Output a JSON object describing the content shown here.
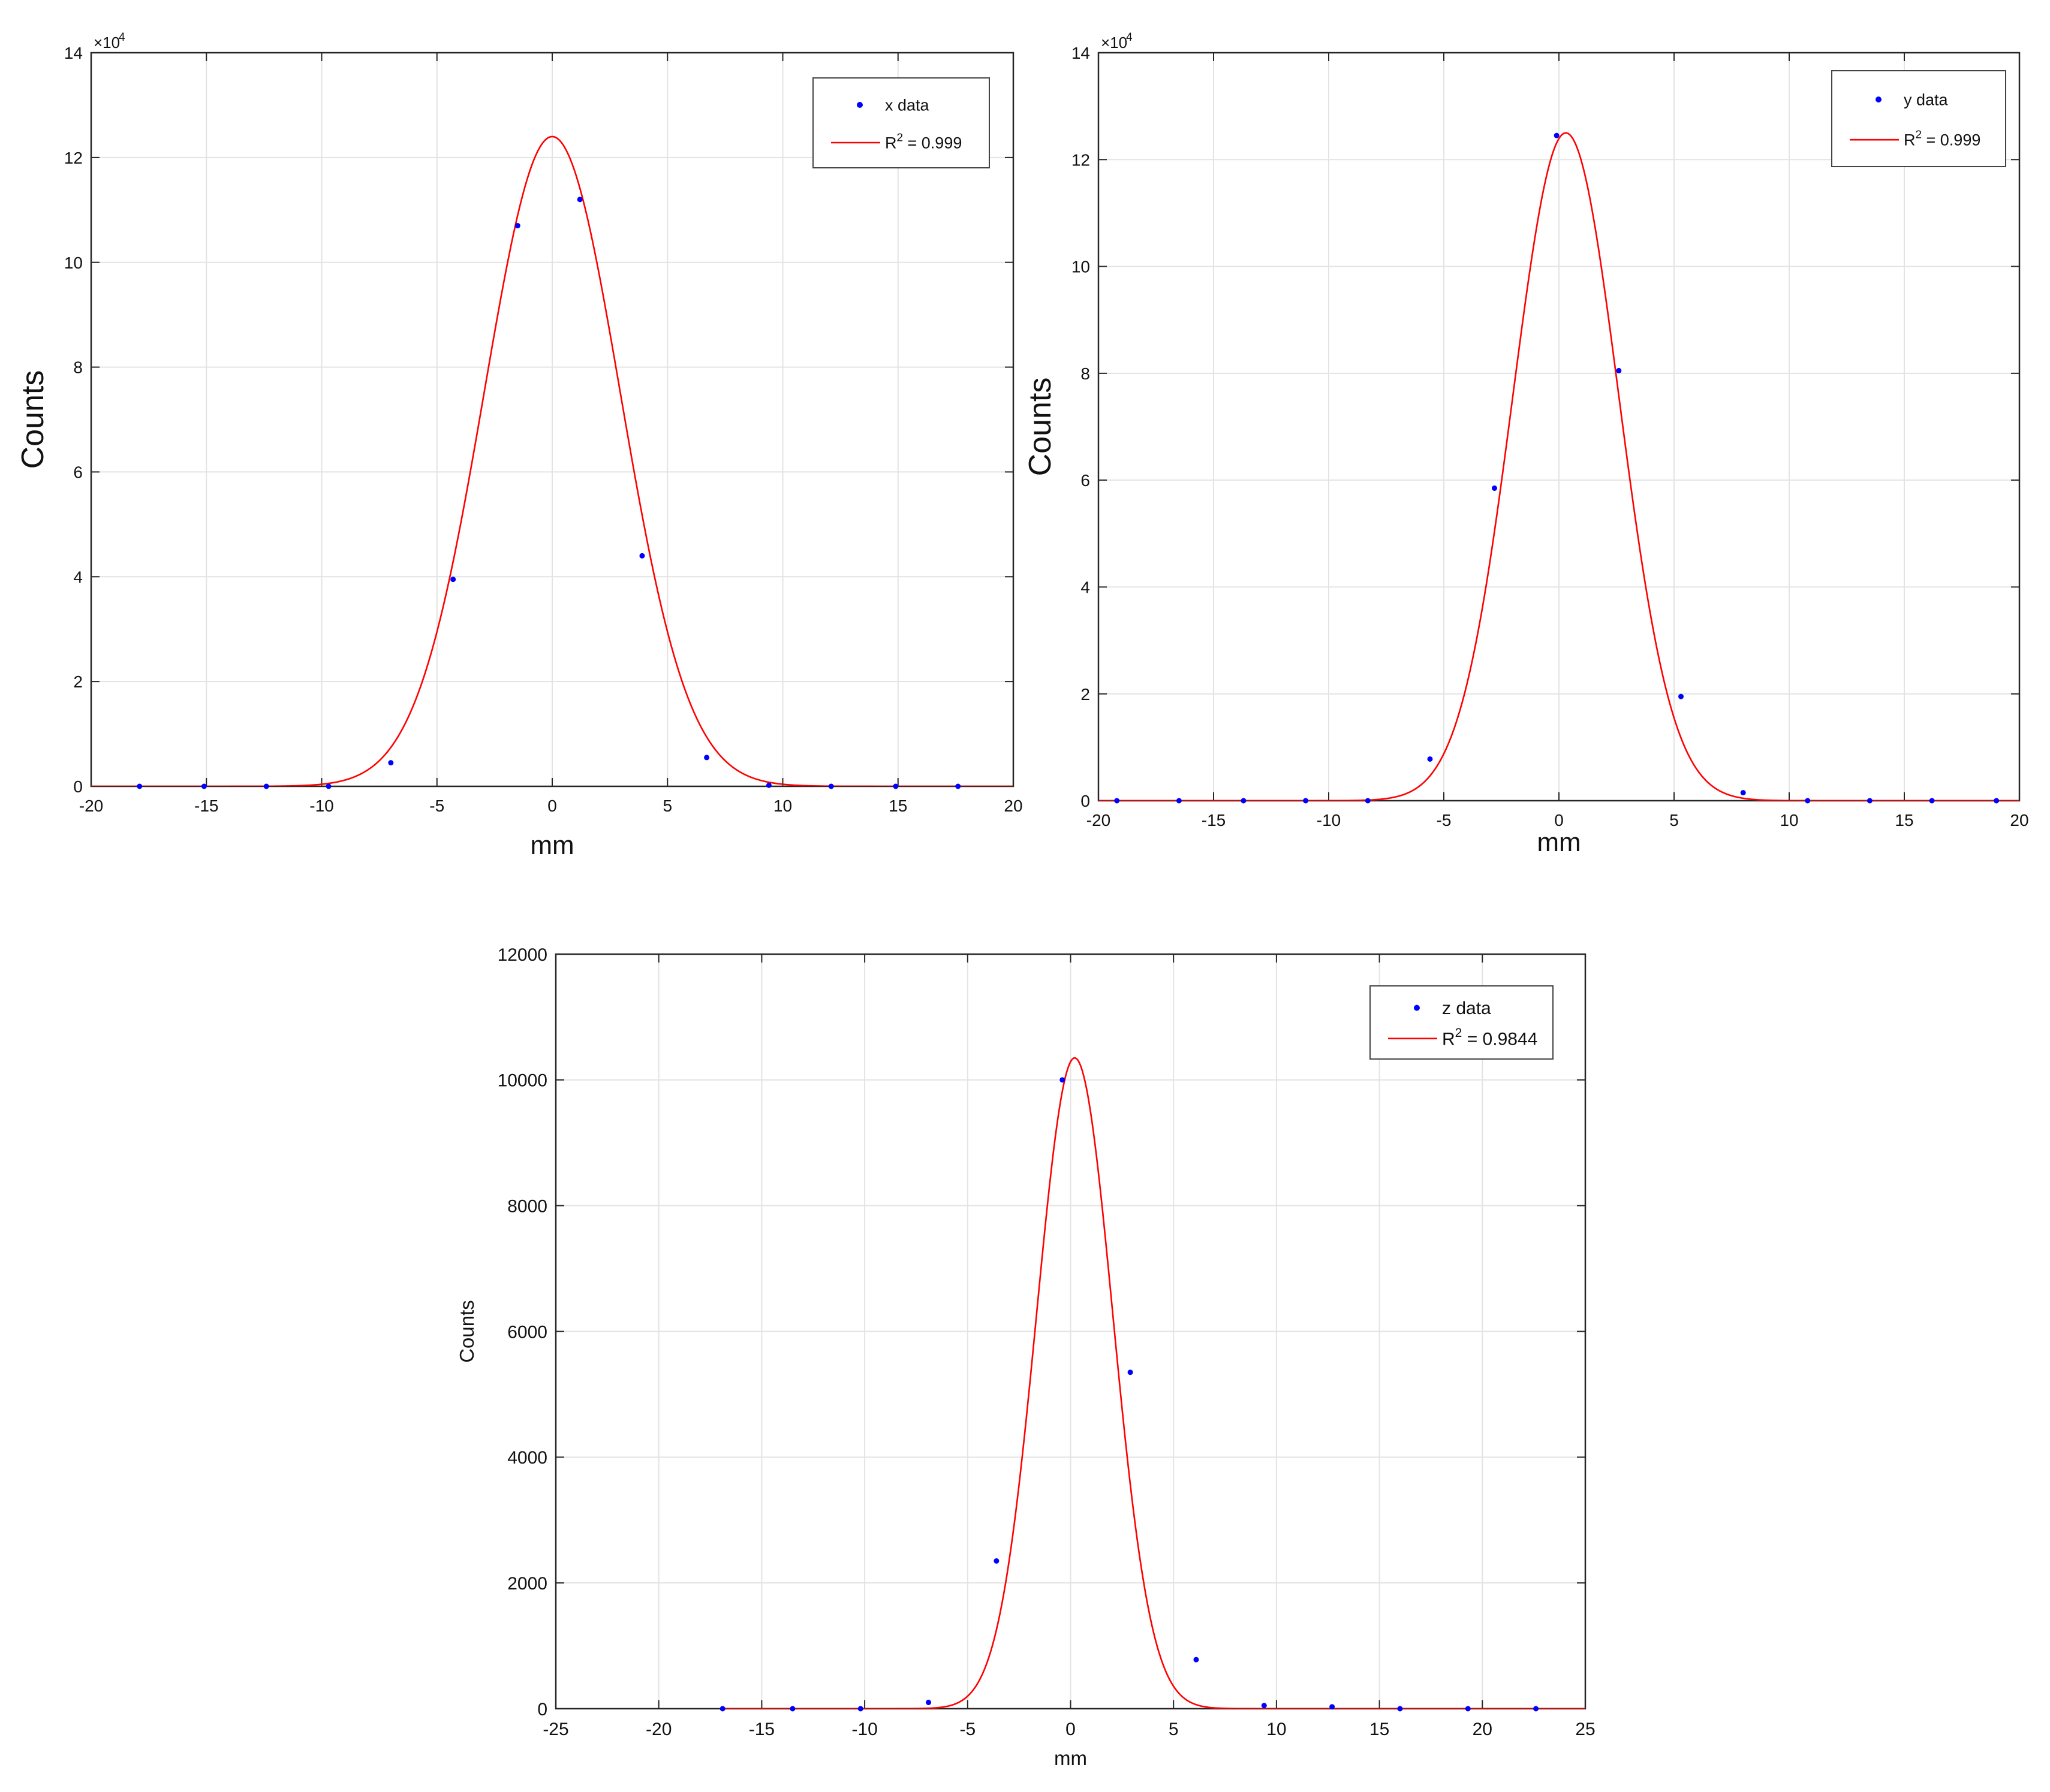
{
  "chart_data": [
    {
      "type": "scatter",
      "xlabel": "mm",
      "ylabel": "Counts",
      "xlim": [
        -20,
        20
      ],
      "ylim": [
        0,
        140000
      ],
      "y_exponent_label": "×10",
      "y_exponent_power": "4",
      "xticks": [
        -20,
        -15,
        -10,
        -5,
        0,
        5,
        10,
        15,
        20
      ],
      "xtick_labels": [
        "-20",
        "-15",
        "-10",
        "-5",
        "0",
        "5",
        "10",
        "15",
        "20"
      ],
      "yticks": [
        0,
        20000,
        40000,
        60000,
        80000,
        100000,
        120000,
        140000
      ],
      "ytick_labels": [
        "0",
        "2",
        "4",
        "6",
        "8",
        "10",
        "12",
        "14"
      ],
      "grid": true,
      "legend_position": "top-right",
      "series": [
        {
          "name": "x data",
          "kind": "points",
          "color": "#0000ff",
          "x": [
            -17.9,
            -15.1,
            -12.4,
            -9.7,
            -7.0,
            -4.3,
            -1.5,
            1.2,
            3.9,
            6.7,
            9.4,
            12.1,
            14.9,
            17.6
          ],
          "y": [
            0,
            0,
            0,
            0,
            4500,
            39500,
            107000,
            112000,
            44000,
            5500,
            200,
            0,
            0,
            0
          ]
        },
        {
          "name": "R",
          "name_sup": "2",
          "name_rest": " = 0.999",
          "kind": "fit",
          "color": "#ff0000",
          "fit": {
            "amplitude": 124000,
            "center": 0.0,
            "sigma": 2.95
          }
        }
      ]
    },
    {
      "type": "scatter",
      "xlabel": "mm",
      "ylabel": "Counts",
      "xlim": [
        -20,
        20
      ],
      "ylim": [
        0,
        140000
      ],
      "y_exponent_label": "×10",
      "y_exponent_power": "4",
      "xticks": [
        -20,
        -15,
        -10,
        -5,
        0,
        5,
        10,
        15,
        20
      ],
      "xtick_labels": [
        "-20",
        "-15",
        "-10",
        "-5",
        "0",
        "5",
        "10",
        "15",
        "20"
      ],
      "yticks": [
        0,
        20000,
        40000,
        60000,
        80000,
        100000,
        120000,
        140000
      ],
      "ytick_labels": [
        "0",
        "2",
        "4",
        "6",
        "8",
        "10",
        "12",
        "14"
      ],
      "grid": true,
      "legend_position": "top-right",
      "series": [
        {
          "name": "y data",
          "kind": "points",
          "color": "#0000ff",
          "x": [
            -19.2,
            -16.5,
            -13.7,
            -11.0,
            -8.3,
            -5.6,
            -2.8,
            -0.1,
            2.6,
            5.3,
            8.0,
            10.8,
            13.5,
            16.2,
            19.0
          ],
          "y": [
            0,
            0,
            0,
            0,
            0,
            7800,
            58500,
            124500,
            80500,
            19500,
            1500,
            0,
            0,
            0,
            0
          ]
        },
        {
          "name": "R",
          "name_sup": "2",
          "name_rest": " = 0.999",
          "kind": "fit",
          "color": "#ff0000",
          "fit": {
            "amplitude": 125000,
            "center": 0.3,
            "sigma": 2.3
          }
        }
      ]
    },
    {
      "type": "scatter",
      "xlabel": "mm",
      "ylabel": "Counts",
      "xlim": [
        -25,
        25
      ],
      "ylim": [
        0,
        12000
      ],
      "xticks": [
        -25,
        -20,
        -15,
        -10,
        -5,
        0,
        5,
        10,
        15,
        20,
        25
      ],
      "xtick_labels": [
        "-25",
        "-20",
        "-15",
        "-10",
        "-5",
        "0",
        "5",
        "10",
        "15",
        "20",
        "25"
      ],
      "yticks": [
        0,
        2000,
        4000,
        6000,
        8000,
        10000,
        12000
      ],
      "ytick_labels": [
        "0",
        "2000",
        "4000",
        "6000",
        "8000",
        "10000",
        "12000"
      ],
      "grid": true,
      "legend_position": "top-right",
      "series": [
        {
          "name": "z data",
          "kind": "points",
          "color": "#0000ff",
          "x": [
            -16.9,
            -13.5,
            -10.2,
            -6.9,
            -3.6,
            -0.4,
            2.9,
            6.1,
            9.4,
            12.7,
            16.0,
            19.3,
            22.6
          ],
          "y": [
            0,
            0,
            0,
            100,
            2350,
            10000,
            5350,
            780,
            50,
            30,
            0,
            0,
            0
          ]
        },
        {
          "name": "R",
          "name_sup": "2",
          "name_rest": " = 0.9844",
          "kind": "fit",
          "color": "#ff0000",
          "fit": {
            "amplitude": 10350,
            "center": 0.2,
            "sigma": 1.85,
            "x_range": [
              -17,
              25
            ]
          }
        }
      ]
    }
  ]
}
